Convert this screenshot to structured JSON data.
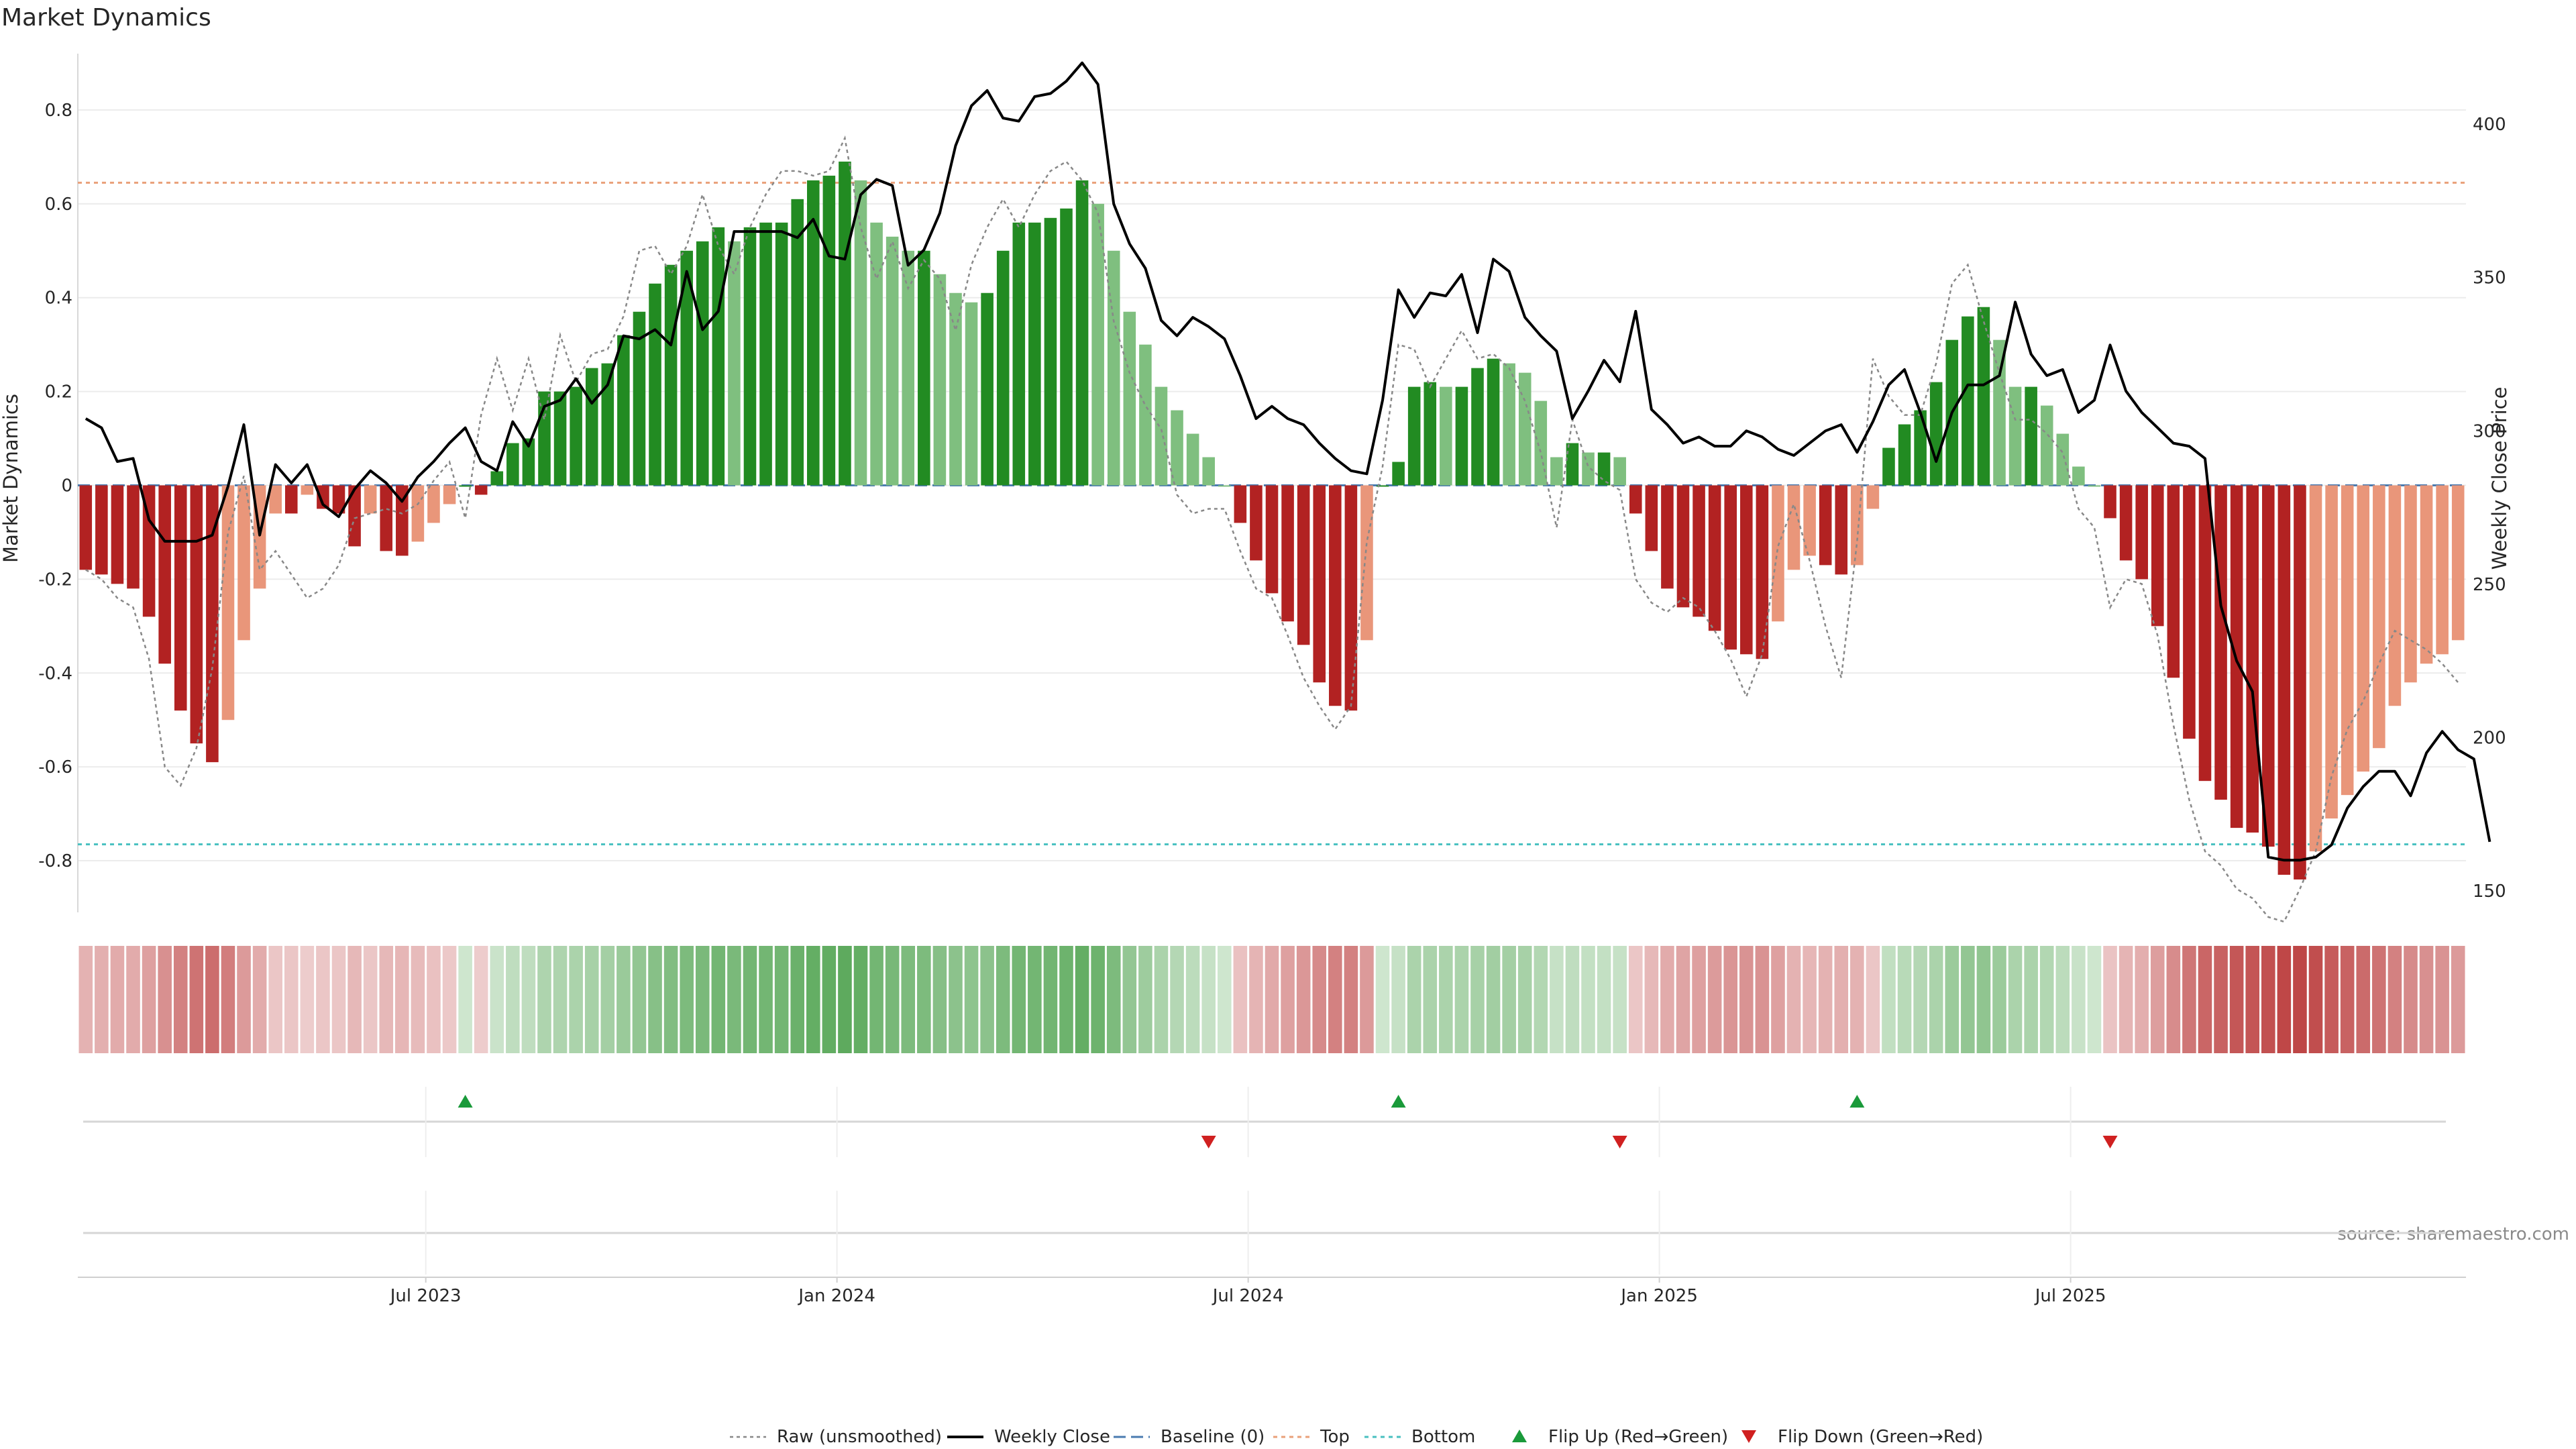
{
  "chart_data": {
    "type": "bar",
    "title": "Market Dynamics",
    "ylabel": "Market Dynamics",
    "ylabel_right": "Weekly Close Price",
    "ylim": [
      -0.91,
      0.92
    ],
    "ylim_right": [
      143,
      423
    ],
    "y_ticks": [
      0.8,
      0.6,
      0.4,
      0.2,
      0,
      -0.2,
      -0.4,
      -0.6,
      -0.8
    ],
    "y_ticks_right": [
      400,
      350,
      300,
      250,
      200,
      150
    ],
    "x_ticks": [
      {
        "label": "Jul 2023",
        "week": 22
      },
      {
        "label": "Jan 2024",
        "week": 48
      },
      {
        "label": "Jul 2024",
        "week": 74
      },
      {
        "label": "Jan 2025",
        "week": 100
      },
      {
        "label": "Jul 2025",
        "week": 126
      }
    ],
    "grid": true,
    "legend_position": "bottom",
    "source": "source: sharemaestro.com",
    "colors": {
      "strong_positive": "#228b22",
      "weak_positive": "#7fbf7f",
      "strong_negative": "#b22222",
      "weak_negative": "#e9967a",
      "weekly_close": "#000000",
      "raw": "#888888",
      "baseline": "#4a7bb0",
      "top": "#e9a07a",
      "bottom": "#48c0c0",
      "flip_up": "#1a9a3a",
      "flip_down": "#d02020"
    },
    "thresholds": {
      "baseline": 0,
      "top": 0.645,
      "bottom": -0.765
    },
    "series": [
      {
        "name": "Market Dynamics bars",
        "values": [
          -0.18,
          -0.19,
          -0.21,
          -0.22,
          -0.28,
          -0.38,
          -0.48,
          -0.55,
          -0.59,
          -0.5,
          -0.33,
          -0.22,
          -0.06,
          -0.06,
          -0.02,
          -0.05,
          -0.06,
          -0.13,
          -0.06,
          -0.14,
          -0.15,
          -0.12,
          -0.08,
          -0.04,
          0.0,
          -0.02,
          0.03,
          0.09,
          0.1,
          0.2,
          0.2,
          0.21,
          0.25,
          0.26,
          0.32,
          0.37,
          0.43,
          0.47,
          0.5,
          0.52,
          0.55,
          0.52,
          0.55,
          0.56,
          0.56,
          0.61,
          0.65,
          0.66,
          0.69,
          0.65,
          0.56,
          0.53,
          0.5,
          0.5,
          0.45,
          0.41,
          0.39,
          0.41,
          0.5,
          0.56,
          0.56,
          0.57,
          0.59,
          0.65,
          0.6,
          0.5,
          0.37,
          0.3,
          0.21,
          0.16,
          0.11,
          0.06,
          0.0,
          -0.08,
          -0.16,
          -0.23,
          -0.29,
          -0.34,
          -0.42,
          -0.47,
          -0.48,
          -0.33,
          0.0,
          0.05,
          0.21,
          0.22,
          0.21,
          0.21,
          0.25,
          0.27,
          0.26,
          0.24,
          0.18,
          0.06,
          0.09,
          0.07,
          0.07,
          0.06,
          -0.06,
          -0.14,
          -0.22,
          -0.26,
          -0.28,
          -0.31,
          -0.35,
          -0.36,
          -0.37,
          -0.29,
          -0.18,
          -0.15,
          -0.17,
          -0.19,
          -0.17,
          -0.05,
          0.08,
          0.13,
          0.16,
          0.22,
          0.31,
          0.36,
          0.38,
          0.31,
          0.21,
          0.21,
          0.17,
          0.11,
          0.04,
          0.0,
          -0.07,
          -0.16,
          -0.2,
          -0.3,
          -0.41,
          -0.54,
          -0.63,
          -0.67,
          -0.73,
          -0.74,
          -0.77,
          -0.83,
          -0.84,
          -0.78,
          -0.71,
          -0.66,
          -0.61,
          -0.56,
          -0.47,
          -0.42,
          -0.38,
          -0.36,
          -0.33
        ]
      },
      {
        "name": "Raw (unsmoothed)",
        "values": [
          -0.18,
          -0.2,
          -0.24,
          -0.26,
          -0.37,
          -0.6,
          -0.64,
          -0.56,
          -0.39,
          -0.1,
          0.02,
          -0.18,
          -0.14,
          -0.19,
          -0.24,
          -0.22,
          -0.17,
          -0.07,
          -0.06,
          -0.05,
          -0.06,
          -0.04,
          0.01,
          0.05,
          -0.07,
          0.15,
          0.27,
          0.16,
          0.27,
          0.14,
          0.32,
          0.22,
          0.28,
          0.29,
          0.36,
          0.5,
          0.51,
          0.45,
          0.51,
          0.62,
          0.51,
          0.45,
          0.55,
          0.62,
          0.67,
          0.67,
          0.66,
          0.67,
          0.74,
          0.55,
          0.44,
          0.52,
          0.42,
          0.48,
          0.44,
          0.33,
          0.47,
          0.55,
          0.61,
          0.55,
          0.62,
          0.67,
          0.69,
          0.65,
          0.58,
          0.35,
          0.24,
          0.17,
          0.12,
          -0.02,
          -0.06,
          -0.05,
          -0.05,
          -0.14,
          -0.22,
          -0.24,
          -0.32,
          -0.41,
          -0.47,
          -0.52,
          -0.47,
          -0.12,
          0.04,
          0.3,
          0.29,
          0.21,
          0.27,
          0.33,
          0.27,
          0.28,
          0.25,
          0.18,
          0.07,
          -0.09,
          0.14,
          0.04,
          0.01,
          -0.01,
          -0.2,
          -0.25,
          -0.27,
          -0.24,
          -0.26,
          -0.31,
          -0.37,
          -0.45,
          -0.36,
          -0.13,
          -0.04,
          -0.16,
          -0.3,
          -0.41,
          -0.12,
          0.27,
          0.19,
          0.15,
          0.15,
          0.26,
          0.43,
          0.47,
          0.35,
          0.24,
          0.14,
          0.14,
          0.11,
          0.07,
          -0.05,
          -0.09,
          -0.26,
          -0.2,
          -0.21,
          -0.32,
          -0.51,
          -0.67,
          -0.78,
          -0.81,
          -0.86,
          -0.88,
          -0.92,
          -0.93,
          -0.86,
          -0.78,
          -0.62,
          -0.52,
          -0.46,
          -0.38,
          -0.31,
          -0.33,
          -0.35,
          -0.38,
          -0.42
        ]
      },
      {
        "name": "Weekly Close",
        "values": [
          304,
          301,
          290,
          291,
          271,
          264,
          264,
          264,
          266,
          282,
          302,
          266,
          289,
          283,
          289,
          276,
          272,
          281,
          287,
          283,
          277,
          285,
          290,
          296,
          301,
          290,
          287,
          303,
          295,
          308,
          310,
          317,
          309,
          315,
          331,
          330,
          333,
          328,
          352,
          333,
          339,
          365,
          365,
          365,
          365,
          363,
          369,
          357,
          356,
          377,
          382,
          380,
          354,
          359,
          371,
          393,
          406,
          411,
          402,
          401,
          409,
          410,
          414,
          420,
          413,
          374,
          361,
          353,
          336,
          331,
          337,
          334,
          330,
          318,
          304,
          308,
          304,
          302,
          296,
          291,
          287,
          286,
          310,
          346,
          337,
          345,
          344,
          351,
          332,
          356,
          352,
          337,
          331,
          326,
          304,
          313,
          323,
          316,
          339,
          307,
          302,
          296,
          298,
          295,
          295,
          300,
          298,
          294,
          292,
          296,
          300,
          302,
          293,
          303,
          315,
          320,
          306,
          290,
          306,
          315,
          315,
          318,
          342,
          325,
          318,
          320,
          306,
          310,
          328,
          313,
          306,
          301,
          296,
          295,
          291,
          243,
          225,
          215,
          161,
          160,
          160,
          161,
          165,
          177,
          184,
          189,
          189,
          181,
          195,
          202,
          196,
          193,
          166
        ]
      }
    ],
    "flips_up_weeks": [
      24,
      83,
      112
    ],
    "flips_down_weeks": [
      71,
      97,
      128
    ],
    "legend": [
      "Raw (unsmoothed)",
      "Weekly Close",
      "Baseline (0)",
      "Top",
      "Bottom",
      "Flip Up (Red→Green)",
      "Flip Down (Green→Red)"
    ]
  }
}
